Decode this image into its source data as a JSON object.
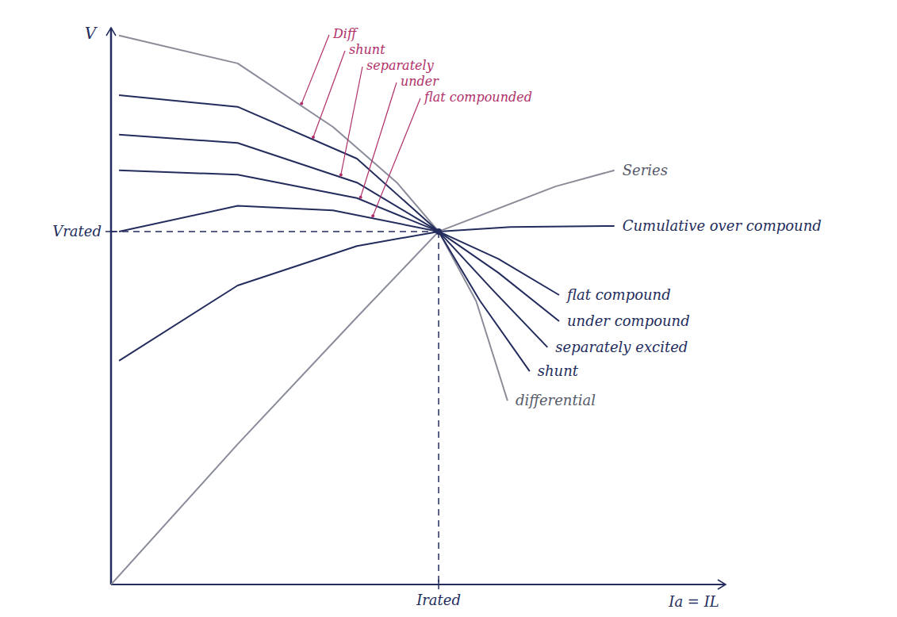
{
  "chart_data": {
    "type": "line",
    "xlabel": "Ia = IL",
    "ylabel": "V",
    "xlim": [
      0,
      10
    ],
    "ylim": [
      0,
      10
    ],
    "xticks": [
      {
        "value": 5.33,
        "label": "Irated"
      }
    ],
    "yticks": [
      {
        "value": 6.34,
        "label": "Vrated"
      }
    ],
    "grid": false,
    "series": [
      {
        "name": "differential",
        "color": "#8a8c99",
        "x": [
          0.13,
          2.06,
          3.61,
          4.65,
          5.33,
          5.94,
          6.45
        ],
        "values": [
          9.86,
          9.36,
          8.22,
          7.22,
          6.34,
          5.09,
          3.3
        ]
      },
      {
        "name": "shunt",
        "color": "#232c5c",
        "x": [
          0.13,
          2.06,
          4.0,
          5.33,
          6.0,
          6.81
        ],
        "values": [
          8.79,
          8.58,
          7.65,
          6.34,
          5.1,
          3.83
        ]
      },
      {
        "name": "separately excited",
        "color": "#232c5c",
        "x": [
          0.13,
          2.06,
          4.0,
          5.33,
          6.2,
          7.1
        ],
        "values": [
          8.08,
          7.93,
          7.22,
          6.34,
          5.3,
          4.26
        ]
      },
      {
        "name": "under compound",
        "color": "#232c5c",
        "x": [
          0.13,
          2.06,
          4.0,
          5.33,
          6.3,
          7.29
        ],
        "values": [
          7.44,
          7.36,
          6.94,
          6.34,
          5.6,
          4.73
        ]
      },
      {
        "name": "flat compound",
        "color": "#232c5c",
        "x": [
          0.13,
          2.06,
          3.61,
          5.33,
          6.3,
          7.29
        ],
        "values": [
          6.34,
          6.8,
          6.72,
          6.34,
          5.85,
          5.2
        ]
      },
      {
        "name": "Cumulative over compound",
        "color": "#232c5c",
        "x": [
          0.13,
          2.06,
          4.0,
          5.33,
          6.5,
          8.19
        ],
        "values": [
          4.02,
          5.37,
          6.08,
          6.34,
          6.42,
          6.44
        ]
      },
      {
        "name": "Series",
        "color": "#8a8c99",
        "x": [
          0,
          2.06,
          4.0,
          5.33,
          7.23,
          8.19
        ],
        "values": [
          0,
          2.52,
          4.8,
          6.34,
          7.15,
          7.44
        ]
      }
    ],
    "annotations": [
      "Diff",
      "shunt",
      "separately",
      "under",
      "flat compounded"
    ]
  }
}
